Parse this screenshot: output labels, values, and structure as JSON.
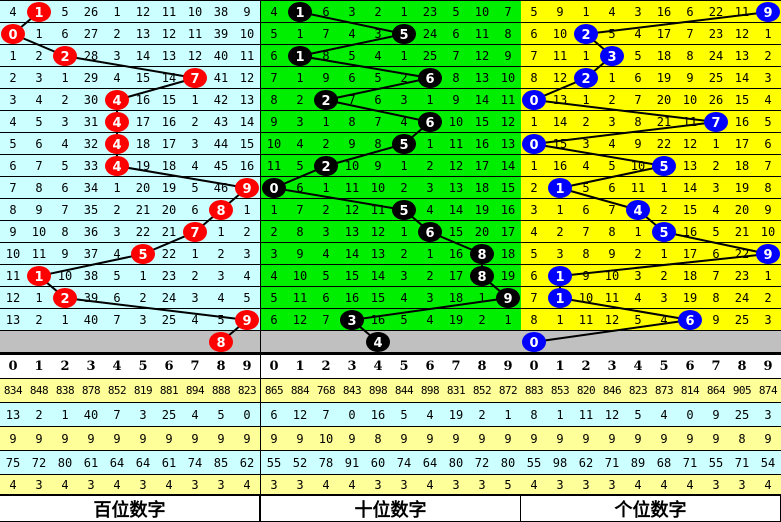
{
  "chart_data": {
    "type": "table",
    "panels": [
      {
        "name": "hundreds",
        "label": "百位数字",
        "bg": "#ccffff",
        "ball_color": "#ff0000",
        "header": [
          "0",
          "1",
          "2",
          "3",
          "4",
          "5",
          "6",
          "7",
          "8",
          "9"
        ],
        "rows": [
          [
            4,
            1,
            5,
            26,
            1,
            12,
            11,
            10,
            38,
            9
          ],
          [
            0,
            1,
            6,
            27,
            2,
            13,
            12,
            11,
            39,
            10
          ],
          [
            1,
            2,
            2,
            28,
            3,
            14,
            13,
            12,
            40,
            11
          ],
          [
            2,
            3,
            1,
            29,
            4,
            15,
            14,
            7,
            41,
            12
          ],
          [
            3,
            4,
            2,
            30,
            4,
            16,
            15,
            1,
            42,
            13
          ],
          [
            4,
            5,
            3,
            31,
            4,
            17,
            16,
            2,
            43,
            14
          ],
          [
            5,
            6,
            4,
            32,
            4,
            18,
            17,
            3,
            44,
            15
          ],
          [
            6,
            7,
            5,
            33,
            4,
            19,
            18,
            4,
            45,
            16
          ],
          [
            7,
            8,
            6,
            34,
            1,
            20,
            19,
            5,
            46,
            9
          ],
          [
            8,
            9,
            7,
            35,
            2,
            21,
            20,
            6,
            8,
            1
          ],
          [
            9,
            10,
            8,
            36,
            3,
            22,
            21,
            7,
            1,
            2
          ],
          [
            10,
            11,
            9,
            37,
            4,
            5,
            22,
            1,
            2,
            3
          ],
          [
            11,
            1,
            10,
            38,
            5,
            1,
            23,
            2,
            3,
            4
          ],
          [
            12,
            1,
            2,
            39,
            6,
            2,
            24,
            3,
            4,
            5
          ],
          [
            13,
            2,
            1,
            40,
            7,
            3,
            25,
            4,
            5,
            9
          ]
        ],
        "drawn": [
          1,
          0,
          2,
          7,
          4,
          4,
          4,
          4,
          9,
          8,
          7,
          5,
          1,
          2,
          9
        ],
        "next": 8,
        "stats": [
          [
            834,
            848,
            838,
            878,
            852,
            819,
            881,
            894,
            888,
            823
          ],
          [
            13,
            2,
            1,
            40,
            7,
            3,
            25,
            4,
            5,
            0
          ],
          [
            9,
            9,
            9,
            9,
            9,
            9,
            9,
            9,
            9,
            9
          ],
          [
            75,
            72,
            80,
            61,
            64,
            64,
            61,
            74,
            85,
            62
          ],
          [
            4,
            3,
            4,
            3,
            4,
            3,
            4,
            3,
            3,
            4
          ]
        ]
      },
      {
        "name": "tens",
        "label": "十位数字",
        "bg": "#00ee00",
        "ball_color": "#000000",
        "header": [
          "0",
          "1",
          "2",
          "3",
          "4",
          "5",
          "6",
          "7",
          "8",
          "9"
        ],
        "rows": [
          [
            4,
            1,
            6,
            3,
            2,
            1,
            23,
            5,
            10,
            7
          ],
          [
            5,
            1,
            7,
            4,
            3,
            5,
            24,
            6,
            11,
            8
          ],
          [
            6,
            1,
            8,
            5,
            4,
            1,
            25,
            7,
            12,
            9
          ],
          [
            7,
            1,
            9,
            6,
            5,
            2,
            6,
            8,
            13,
            10
          ],
          [
            8,
            2,
            2,
            7,
            6,
            3,
            1,
            9,
            14,
            11
          ],
          [
            9,
            3,
            1,
            8,
            7,
            4,
            6,
            10,
            15,
            12
          ],
          [
            10,
            4,
            2,
            9,
            8,
            5,
            1,
            11,
            16,
            13
          ],
          [
            11,
            5,
            2,
            10,
            9,
            1,
            2,
            12,
            17,
            14
          ],
          [
            0,
            6,
            1,
            11,
            10,
            2,
            3,
            13,
            18,
            15
          ],
          [
            1,
            7,
            2,
            12,
            11,
            5,
            4,
            14,
            19,
            16
          ],
          [
            2,
            8,
            3,
            13,
            12,
            1,
            6,
            15,
            20,
            17
          ],
          [
            3,
            9,
            4,
            14,
            13,
            2,
            1,
            16,
            8,
            18
          ],
          [
            4,
            10,
            5,
            15,
            14,
            3,
            2,
            17,
            8,
            19
          ],
          [
            5,
            11,
            6,
            16,
            15,
            4,
            3,
            18,
            1,
            9
          ],
          [
            6,
            12,
            7,
            3,
            16,
            5,
            4,
            19,
            2,
            1
          ]
        ],
        "drawn": [
          1,
          5,
          1,
          6,
          2,
          6,
          5,
          2,
          0,
          5,
          6,
          8,
          8,
          9,
          3
        ],
        "next": 4,
        "stats": [
          [
            865,
            884,
            768,
            843,
            898,
            844,
            898,
            831,
            852,
            872
          ],
          [
            6,
            12,
            7,
            0,
            16,
            5,
            4,
            19,
            2,
            1
          ],
          [
            9,
            9,
            10,
            9,
            8,
            9,
            9,
            9,
            9,
            9
          ],
          [
            55,
            52,
            78,
            91,
            60,
            74,
            64,
            80,
            72,
            80
          ],
          [
            3,
            3,
            4,
            4,
            3,
            3,
            4,
            3,
            3,
            5
          ]
        ]
      },
      {
        "name": "units",
        "label": "个位数字",
        "bg": "#ffff00",
        "ball_color": "#0000ff",
        "header": [
          "0",
          "1",
          "2",
          "3",
          "4",
          "5",
          "6",
          "7",
          "8",
          "9"
        ],
        "rows": [
          [
            5,
            9,
            1,
            4,
            3,
            16,
            6,
            22,
            11,
            9
          ],
          [
            6,
            10,
            2,
            5,
            4,
            17,
            7,
            23,
            12,
            1
          ],
          [
            7,
            11,
            1,
            3,
            5,
            18,
            8,
            24,
            13,
            2
          ],
          [
            8,
            12,
            2,
            1,
            6,
            19,
            9,
            25,
            14,
            3
          ],
          [
            0,
            13,
            1,
            2,
            7,
            20,
            10,
            26,
            15,
            4
          ],
          [
            1,
            14,
            2,
            3,
            8,
            21,
            11,
            7,
            16,
            5
          ],
          [
            0,
            15,
            3,
            4,
            9,
            22,
            12,
            1,
            17,
            6
          ],
          [
            1,
            16,
            4,
            5,
            10,
            5,
            13,
            2,
            18,
            7
          ],
          [
            2,
            1,
            5,
            6,
            11,
            1,
            14,
            3,
            19,
            8
          ],
          [
            3,
            1,
            6,
            7,
            4,
            2,
            15,
            4,
            20,
            9
          ],
          [
            4,
            2,
            7,
            8,
            1,
            5,
            16,
            5,
            21,
            10
          ],
          [
            5,
            3,
            8,
            9,
            2,
            1,
            17,
            6,
            22,
            9
          ],
          [
            6,
            1,
            9,
            10,
            3,
            2,
            18,
            7,
            23,
            1
          ],
          [
            7,
            1,
            10,
            11,
            4,
            3,
            19,
            8,
            24,
            2
          ],
          [
            8,
            1,
            11,
            12,
            5,
            4,
            6,
            9,
            25,
            3
          ]
        ],
        "drawn": [
          9,
          2,
          3,
          2,
          0,
          7,
          0,
          5,
          1,
          4,
          5,
          9,
          1,
          1,
          6
        ],
        "next": 0,
        "stats": [
          [
            883,
            853,
            820,
            846,
            823,
            873,
            814,
            864,
            905,
            874
          ],
          [
            8,
            1,
            11,
            12,
            5,
            4,
            0,
            9,
            25,
            3
          ],
          [
            9,
            9,
            9,
            9,
            9,
            9,
            9,
            9,
            8,
            9
          ],
          [
            55,
            98,
            62,
            71,
            89,
            68,
            71,
            55,
            71,
            54
          ],
          [
            4,
            3,
            3,
            3,
            4,
            4,
            4,
            3,
            3,
            4
          ]
        ]
      }
    ],
    "colors": {
      "prediction_row": "#c0c0c0",
      "stat_yellow": "#ffff99",
      "stat_cyan": "#ccffff",
      "line": "#000000"
    }
  }
}
